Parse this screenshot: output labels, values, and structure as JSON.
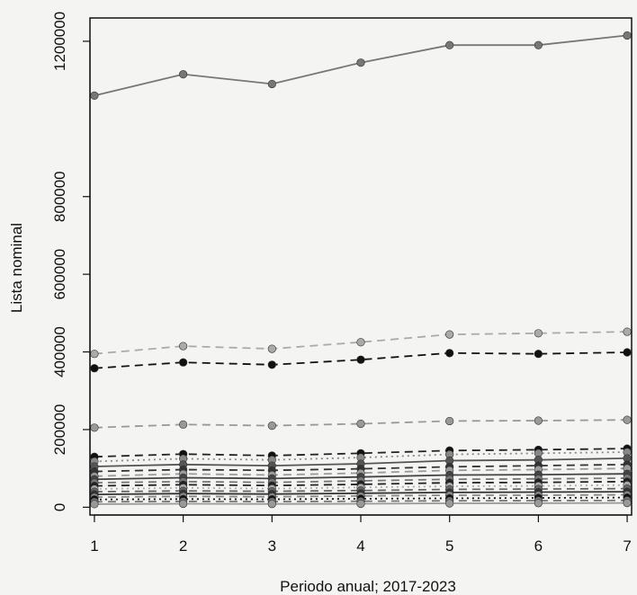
{
  "chart_data": {
    "type": "line",
    "xlabel": "Periodo anual; 2017-2023",
    "ylabel": "Lista nominal",
    "x": [
      1,
      2,
      3,
      4,
      5,
      6,
      7
    ],
    "xticks": [
      "1",
      "2",
      "3",
      "4",
      "5",
      "6",
      "7"
    ],
    "yticks": [
      "0",
      "200000",
      "400000",
      "600000",
      "800000",
      "1200000"
    ],
    "ytick_values": [
      0,
      200000,
      400000,
      600000,
      800000,
      1200000
    ],
    "xlim": [
      0.95,
      7.05
    ],
    "ylim": [
      -20000,
      1260000
    ],
    "grid": false,
    "legend": "none",
    "series": [
      {
        "values": [
          1060000,
          1115000,
          1090000,
          1145000,
          1190000,
          1190000,
          1215000
        ],
        "color": "#777777",
        "dash": "solid",
        "marker": "#777777"
      },
      {
        "values": [
          395000,
          415000,
          408000,
          425000,
          445000,
          448000,
          452000
        ],
        "color": "#aaaaaa",
        "dash": "dashed",
        "marker": "#aaaaaa"
      },
      {
        "values": [
          358000,
          373000,
          367000,
          380000,
          397000,
          395000,
          399000
        ],
        "color": "#111111",
        "dash": "dashed",
        "marker": "#111111"
      },
      {
        "values": [
          205000,
          213000,
          210000,
          215000,
          222000,
          223000,
          225000
        ],
        "color": "#999999",
        "dash": "dashed",
        "marker": "#999999"
      },
      {
        "values": [
          130000,
          137000,
          133000,
          139000,
          146000,
          148000,
          151000
        ],
        "color": "#222222",
        "dash": "dashed",
        "marker": "#111111"
      },
      {
        "values": [
          118000,
          125000,
          122000,
          128000,
          136000,
          139000,
          142000
        ],
        "color": "#888888",
        "dash": "dotted",
        "marker": "#888888"
      },
      {
        "values": [
          105000,
          110000,
          107000,
          112000,
          120000,
          122000,
          126000
        ],
        "color": "#555555",
        "dash": "solid",
        "marker": "#555555"
      },
      {
        "values": [
          92000,
          97000,
          95000,
          99000,
          104000,
          107000,
          110000
        ],
        "color": "#333333",
        "dash": "dashed",
        "marker": "#333333"
      },
      {
        "values": [
          80000,
          86000,
          83000,
          88000,
          95000,
          97000,
          100000
        ],
        "color": "#9a9a9a",
        "dash": "dashed",
        "marker": "#9a9a9a"
      },
      {
        "values": [
          72000,
          76000,
          74000,
          78000,
          83000,
          84000,
          86000
        ],
        "color": "#444444",
        "dash": "solid",
        "marker": "#444444"
      },
      {
        "values": [
          63000,
          66000,
          64000,
          68000,
          72000,
          73000,
          75000
        ],
        "color": "#777777",
        "dash": "dashed",
        "marker": "#777777"
      },
      {
        "values": [
          55000,
          58000,
          56000,
          59000,
          63000,
          64000,
          66000
        ],
        "color": "#222222",
        "dash": "dashed",
        "marker": "#222222"
      },
      {
        "values": [
          47000,
          50000,
          48000,
          51000,
          54000,
          55000,
          57000
        ],
        "color": "#aaaaaa",
        "dash": "dotted",
        "marker": "#aaaaaa"
      },
      {
        "values": [
          40000,
          42000,
          41000,
          43000,
          46000,
          47000,
          48000
        ],
        "color": "#666666",
        "dash": "dashed",
        "marker": "#666666"
      },
      {
        "values": [
          33000,
          35000,
          34000,
          36000,
          38000,
          39000,
          40000
        ],
        "color": "#333333",
        "dash": "solid",
        "marker": "#333333"
      },
      {
        "values": [
          26000,
          28000,
          27000,
          29000,
          31000,
          31000,
          32000
        ],
        "color": "#888888",
        "dash": "dashed",
        "marker": "#888888"
      },
      {
        "values": [
          20000,
          21000,
          20500,
          22000,
          23000,
          24000,
          25000
        ],
        "color": "#111111",
        "dash": "dotted",
        "marker": "#111111"
      },
      {
        "values": [
          14000,
          15000,
          14500,
          15500,
          16500,
          17000,
          17500
        ],
        "color": "#777777",
        "dash": "dashed",
        "marker": "#777777"
      },
      {
        "values": [
          8000,
          9000,
          8500,
          9000,
          10000,
          10500,
          11000
        ],
        "color": "#999999",
        "dash": "solid",
        "marker": "#999999"
      }
    ]
  }
}
